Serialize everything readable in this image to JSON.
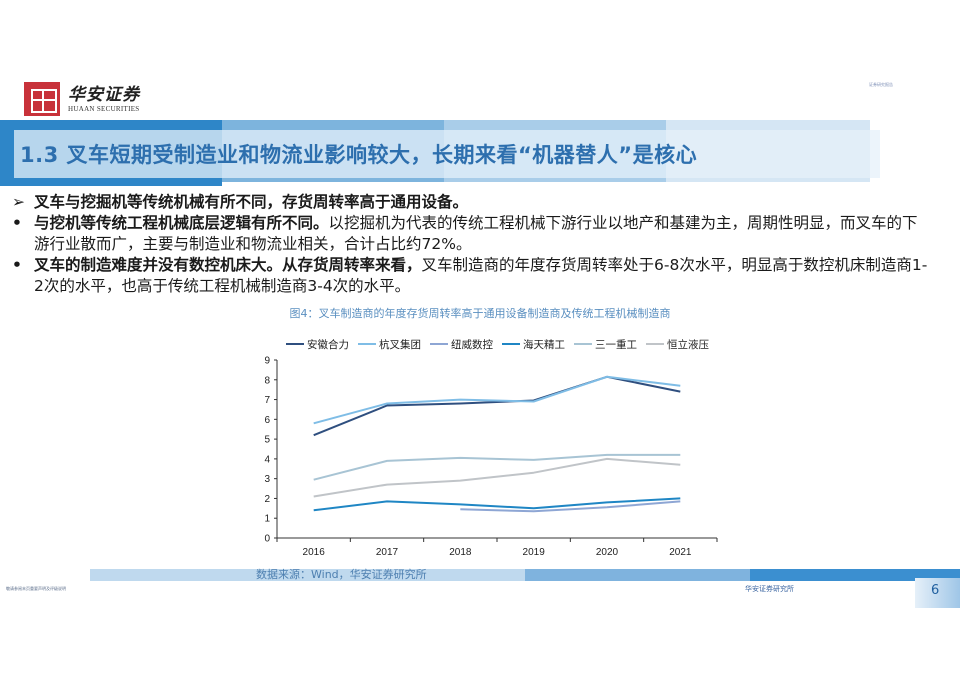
{
  "brand": {
    "name_cn": "华安证券",
    "name_en": "HUAAN SECURITIES",
    "top_right_note": "证券研究报告"
  },
  "header": {
    "title": "1.3 叉车短期受制造业和物流业影响较大，长期来看“机器替人”是核心"
  },
  "bullets": [
    {
      "marker": "➢",
      "bold": "叉车与挖掘机等传统机械有所不同，存货周转率高于通用设备。",
      "text": ""
    },
    {
      "marker": "•",
      "bold": "与挖机等传统工程机械底层逻辑有所不同。",
      "text": "以挖掘机为代表的传统工程机械下游行业以地产和基建为主，周期性明显，而叉车的下游行业散而广，主要与制造业和物流业相关，合计占比约72%。"
    },
    {
      "marker": "•",
      "bold": "叉车的制造难度并没有数控机床大。从存货周转率来看，",
      "text": "叉车制造商的年度存货周转率处于6-8次水平，明显高于数控机床制造商1-2次的水平，也高于传统工程机械制造商3-4次的水平。"
    }
  ],
  "figure": {
    "caption": "图4：叉车制造商的年度存货周转率高于通用设备制造商及传统工程机械制造商",
    "source": "数据来源：Wind，华安证券研究所"
  },
  "chart_data": {
    "type": "line",
    "title": "图4：叉车制造商的年度存货周转率高于通用设备制造商及传统工程机械制造商",
    "xlabel": "",
    "ylabel": "",
    "x": [
      "2016",
      "2017",
      "2018",
      "2019",
      "2020",
      "2021"
    ],
    "ylim": [
      0,
      9
    ],
    "yticks": [
      0,
      1,
      2,
      3,
      4,
      5,
      6,
      7,
      8,
      9
    ],
    "grid": false,
    "legend_position": "top",
    "series": [
      {
        "name": "安徽合力",
        "color": "#2f4f7f",
        "values": [
          5.2,
          6.7,
          6.8,
          6.95,
          8.15,
          7.4
        ]
      },
      {
        "name": "杭叉集团",
        "color": "#7fbde6",
        "values": [
          5.8,
          6.8,
          7.0,
          6.9,
          8.15,
          7.7
        ]
      },
      {
        "name": "纽威数控",
        "color": "#8ea6d4",
        "values": [
          null,
          null,
          1.45,
          1.35,
          1.55,
          1.85
        ]
      },
      {
        "name": "海天精工",
        "color": "#1f86c4",
        "values": [
          1.4,
          1.85,
          1.7,
          1.5,
          1.8,
          2.0
        ]
      },
      {
        "name": "三一重工",
        "color": "#a8c4d4",
        "values": [
          2.95,
          3.9,
          4.05,
          3.95,
          4.2,
          4.2
        ]
      },
      {
        "name": "恒立液压",
        "color": "#c0c4c8",
        "values": [
          2.1,
          2.7,
          2.9,
          3.3,
          4.0,
          3.7
        ]
      }
    ]
  },
  "footer": {
    "left_note": "敬请参阅末页重要声明及评级说明",
    "org": "华安证券研究所",
    "page": "6"
  }
}
